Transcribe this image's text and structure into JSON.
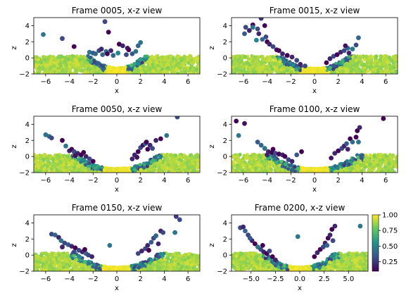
{
  "figure": {
    "colorbar": {
      "range": [
        0.1,
        1.0
      ],
      "ticks": [
        0.25,
        0.5,
        0.75,
        1.0
      ],
      "tick_labels": [
        "0.25",
        "0.50",
        "0.75",
        "1.00"
      ],
      "colormap": "viridis"
    }
  },
  "chart_data": [
    {
      "type": "scatter",
      "title": "Frame 0005, x-z view",
      "xlabel": "x",
      "ylabel": "z",
      "xlim": [
        -7,
        7
      ],
      "ylim": [
        -2,
        5
      ],
      "xticks": [
        -6,
        -4,
        -2,
        0,
        2,
        4,
        6
      ],
      "xtick_labels": [
        "−6",
        "−4",
        "−2",
        "0",
        "2",
        "4",
        "6"
      ],
      "yticks": [
        -2,
        0,
        2,
        4
      ],
      "ytick_labels": [
        "−2",
        "0",
        "2",
        "4"
      ],
      "crater": {
        "radius": 2.3,
        "floor_depth": -1.2
      },
      "points": [
        [
          -6.2,
          2.9,
          0.45
        ],
        [
          -4.6,
          2.4,
          0.3
        ],
        [
          -3.6,
          1.4,
          0.1
        ],
        [
          -2.3,
          0.7,
          0.45
        ],
        [
          -2.0,
          0.6,
          0.35
        ],
        [
          -1.8,
          0.5,
          0.4
        ],
        [
          -1.5,
          0.9,
          0.3
        ],
        [
          -1.2,
          0.4,
          0.4
        ],
        [
          -0.9,
          0.8,
          0.45
        ],
        [
          -0.8,
          0.5,
          0.1
        ],
        [
          -0.7,
          3.2,
          0.1
        ],
        [
          -1.0,
          4.5,
          0.3
        ],
        [
          -0.5,
          0.9,
          0.2
        ],
        [
          -0.3,
          0.3,
          0.4
        ],
        [
          0.2,
          1.7,
          0.1
        ],
        [
          0.5,
          1.5,
          0.2
        ],
        [
          0.8,
          0.4,
          0.3
        ],
        [
          1.0,
          1.0,
          0.1
        ],
        [
          1.3,
          0.5,
          0.35
        ],
        [
          1.6,
          0.8,
          0.45
        ],
        [
          1.8,
          1.5,
          0.4
        ],
        [
          2.0,
          1.9,
          0.45
        ],
        [
          0.9,
          1.2,
          0.15
        ],
        [
          -1.3,
          1.1,
          0.2
        ],
        [
          0.1,
          0.6,
          0.5
        ]
      ]
    },
    {
      "type": "scatter",
      "title": "Frame 0015, x-z view",
      "xlabel": "x",
      "ylabel": "z",
      "xlim": [
        -7,
        7
      ],
      "ylim": [
        -2,
        5
      ],
      "xticks": [
        -6,
        -4,
        -2,
        0,
        2,
        4,
        6
      ],
      "xtick_labels": [
        "−6",
        "−4",
        "−2",
        "0",
        "2",
        "4",
        "6"
      ],
      "yticks": [
        -2,
        0,
        2,
        4
      ],
      "ytick_labels": [
        "−2",
        "0",
        "2",
        "4"
      ],
      "crater": {
        "radius": 2.8,
        "floor_depth": -1.3
      },
      "points": [
        [
          -4.5,
          4.9,
          0.25
        ],
        [
          -5.2,
          4.1,
          0.1
        ],
        [
          -5.8,
          3.8,
          0.3
        ],
        [
          -5.5,
          3.4,
          0.2
        ],
        [
          -5.2,
          3.8,
          0.45
        ],
        [
          -4.8,
          3.6,
          0.3
        ],
        [
          -4.2,
          4.0,
          0.1
        ],
        [
          -4.7,
          3.0,
          0.2
        ],
        [
          -4.4,
          2.3,
          0.4
        ],
        [
          -4.0,
          2.0,
          0.1
        ],
        [
          -3.8,
          1.7,
          0.2
        ],
        [
          -3.5,
          1.4,
          0.3
        ],
        [
          -3.2,
          1.0,
          0.15
        ],
        [
          -3.0,
          0.9,
          0.1
        ],
        [
          -2.7,
          0.5,
          0.2
        ],
        [
          -2.3,
          0.3,
          0.1
        ],
        [
          -1.9,
          0.1,
          0.2
        ],
        [
          -1.5,
          -0.3,
          0.3
        ],
        [
          -1.2,
          -0.8,
          0.2
        ],
        [
          -0.8,
          -1.0,
          0.3
        ],
        [
          -4.9,
          2.2,
          0.5
        ],
        [
          -4.1,
          2.6,
          0.3
        ],
        [
          -5.9,
          3.0,
          0.35
        ],
        [
          1.0,
          -0.6,
          0.1
        ],
        [
          1.3,
          -0.1,
          0.2
        ],
        [
          1.6,
          0.2,
          0.3
        ],
        [
          1.9,
          0.4,
          0.1
        ],
        [
          2.2,
          0.7,
          0.2
        ],
        [
          2.5,
          0.9,
          0.3
        ],
        [
          2.8,
          1.2,
          0.4
        ],
        [
          2.9,
          0.6,
          0.2
        ],
        [
          3.2,
          1.1,
          0.45
        ],
        [
          3.5,
          1.6,
          0.3
        ],
        [
          3.7,
          2.5,
          0.4
        ],
        [
          2.6,
          1.5,
          0.15
        ]
      ]
    },
    {
      "type": "scatter",
      "title": "Frame 0050, x-z view",
      "xlabel": "x",
      "ylabel": "z",
      "xlim": [
        -7,
        7
      ],
      "ylim": [
        -2,
        5
      ],
      "xticks": [
        -6,
        -4,
        -2,
        0,
        2,
        4,
        6
      ],
      "xtick_labels": [
        "−6",
        "−4",
        "−2",
        "0",
        "2",
        "4",
        "6"
      ],
      "yticks": [
        -2,
        0,
        2,
        4
      ],
      "ytick_labels": [
        "−2",
        "0",
        "2",
        "4"
      ],
      "crater": {
        "radius": 3.4,
        "floor_depth": -1.5
      },
      "points": [
        [
          -6.0,
          2.7,
          0.45
        ],
        [
          -5.7,
          2.5,
          0.4
        ],
        [
          -5.5,
          2.3,
          0.3
        ],
        [
          -4.6,
          2.0,
          0.1
        ],
        [
          -4.3,
          1.3,
          0.45
        ],
        [
          -4.0,
          0.7,
          0.2
        ],
        [
          -3.8,
          0.9,
          0.1
        ],
        [
          -3.6,
          0.6,
          0.3
        ],
        [
          -3.3,
          0.4,
          0.2
        ],
        [
          -3.0,
          0.2,
          0.1
        ],
        [
          -2.6,
          0.0,
          0.2
        ],
        [
          -2.3,
          -0.3,
          0.3
        ],
        [
          -2.0,
          -0.6,
          0.1
        ],
        [
          -3.5,
          0.1,
          0.15
        ],
        [
          -2.8,
          0.5,
          0.1
        ],
        [
          1.5,
          0.2,
          0.2
        ],
        [
          1.8,
          0.6,
          0.1
        ],
        [
          2.0,
          1.1,
          0.3
        ],
        [
          2.2,
          1.4,
          0.15
        ],
        [
          2.4,
          1.6,
          0.4
        ],
        [
          2.5,
          1.8,
          0.1
        ],
        [
          2.8,
          1.4,
          0.2
        ],
        [
          3.0,
          1.0,
          0.3
        ],
        [
          2.6,
          0.9,
          0.1
        ],
        [
          3.3,
          2.0,
          0.2
        ],
        [
          3.7,
          2.2,
          0.1
        ],
        [
          4.2,
          2.6,
          0.45
        ],
        [
          5.1,
          4.9,
          0.3
        ],
        [
          1.3,
          -0.3,
          0.2
        ],
        [
          1.7,
          -0.1,
          0.15
        ]
      ]
    },
    {
      "type": "scatter",
      "title": "Frame 0100, x-z view",
      "xlabel": "x",
      "ylabel": "z",
      "xlim": [
        -7,
        7
      ],
      "ylim": [
        -2,
        5
      ],
      "xticks": [
        -6,
        -4,
        -2,
        0,
        2,
        4,
        6
      ],
      "xtick_labels": [
        "−6",
        "−4",
        "−2",
        "0",
        "2",
        "4",
        "6"
      ],
      "yticks": [
        -2,
        0,
        2,
        4
      ],
      "ytick_labels": [
        "−2",
        "0",
        "2",
        "4"
      ],
      "crater": {
        "radius": 3.6,
        "floor_depth": -1.5
      },
      "points": [
        [
          -6.6,
          4.4,
          0.1
        ],
        [
          -5.9,
          4.1,
          0.15
        ],
        [
          -6.4,
          2.6,
          0.45
        ],
        [
          -4.8,
          1.8,
          0.35
        ],
        [
          -4.5,
          1.4,
          0.4
        ],
        [
          -4.2,
          1.0,
          0.45
        ],
        [
          -3.9,
          0.6,
          0.2
        ],
        [
          -3.6,
          0.5,
          0.1
        ],
        [
          -3.3,
          0.4,
          0.3
        ],
        [
          -3.0,
          0.3,
          0.1
        ],
        [
          -2.7,
          0.2,
          0.2
        ],
        [
          -2.5,
          0.0,
          0.1
        ],
        [
          -2.2,
          -0.4,
          0.3
        ],
        [
          -1.9,
          -0.6,
          0.2
        ],
        [
          -1.1,
          0.6,
          0.1
        ],
        [
          -1.5,
          0.2,
          0.35
        ],
        [
          -4.0,
          0.2,
          0.2
        ],
        [
          -3.5,
          0.9,
          0.1
        ],
        [
          1.7,
          0.4,
          0.2
        ],
        [
          2.0,
          0.7,
          0.1
        ],
        [
          2.3,
          1.0,
          0.3
        ],
        [
          2.5,
          1.3,
          0.2
        ],
        [
          2.7,
          1.6,
          0.35
        ],
        [
          3.0,
          2.2,
          0.1
        ],
        [
          2.8,
          0.9,
          0.2
        ],
        [
          3.2,
          1.8,
          0.4
        ],
        [
          3.5,
          2.4,
          0.1
        ],
        [
          3.7,
          1.8,
          0.45
        ],
        [
          3.6,
          3.2,
          0.1
        ],
        [
          3.8,
          3.6,
          0.2
        ],
        [
          5.8,
          4.7,
          0.1
        ],
        [
          1.4,
          -0.2,
          0.15
        ]
      ]
    },
    {
      "type": "scatter",
      "title": "Frame 0150, x-z view",
      "xlabel": "x",
      "ylabel": "z",
      "xlim": [
        -7,
        7
      ],
      "ylim": [
        -2,
        5
      ],
      "xticks": [
        -6,
        -4,
        -2,
        0,
        2,
        4,
        6
      ],
      "xtick_labels": [
        "−6",
        "−4",
        "−2",
        "0",
        "2",
        "4",
        "6"
      ],
      "yticks": [
        -2,
        0,
        2,
        4
      ],
      "ytick_labels": [
        "−2",
        "0",
        "2",
        "4"
      ],
      "crater": {
        "radius": 3.5,
        "floor_depth": -1.5
      },
      "points": [
        [
          -5.5,
          2.6,
          0.3
        ],
        [
          -5.2,
          2.5,
          0.4
        ],
        [
          -4.9,
          2.2,
          0.2
        ],
        [
          -4.7,
          1.8,
          0.45
        ],
        [
          -4.4,
          1.5,
          0.3
        ],
        [
          -4.1,
          1.3,
          0.35
        ],
        [
          -3.8,
          1.1,
          0.2
        ],
        [
          -3.5,
          0.9,
          0.1
        ],
        [
          -3.2,
          0.6,
          0.3
        ],
        [
          -2.9,
          0.4,
          0.2
        ],
        [
          -2.6,
          0.2,
          0.4
        ],
        [
          -2.4,
          0.0,
          0.3
        ],
        [
          -2.1,
          -0.2,
          0.2
        ],
        [
          -3.6,
          0.4,
          0.3
        ],
        [
          -2.7,
          0.7,
          0.1
        ],
        [
          -0.6,
          1.2,
          0.45
        ],
        [
          -4.6,
          1.0,
          0.2
        ],
        [
          1.8,
          0.2,
          0.3
        ],
        [
          2.1,
          0.5,
          0.2
        ],
        [
          2.4,
          0.8,
          0.3
        ],
        [
          2.6,
          1.2,
          0.2
        ],
        [
          2.9,
          1.6,
          0.35
        ],
        [
          3.1,
          2.1,
          0.3
        ],
        [
          3.3,
          2.4,
          0.4
        ],
        [
          2.7,
          0.6,
          0.1
        ],
        [
          3.7,
          3.0,
          0.2
        ],
        [
          3.9,
          2.8,
          0.3
        ],
        [
          4.9,
          2.8,
          0.45
        ],
        [
          5.0,
          4.8,
          0.25
        ],
        [
          5.3,
          4.4,
          0.3
        ],
        [
          3.5,
          1.4,
          0.2
        ]
      ]
    },
    {
      "type": "scatter",
      "title": "Frame 0200, x-z view",
      "xlabel": "x",
      "ylabel": "z",
      "xlim": [
        -7,
        7
      ],
      "ylim": [
        -2,
        5
      ],
      "xticks": [
        -5,
        -2.5,
        0,
        2.5,
        5
      ],
      "xtick_labels": [
        "−5.0",
        "−2.5",
        "0.0",
        "2.5",
        "5.0"
      ],
      "yticks": [
        -2,
        0,
        2,
        4
      ],
      "ytick_labels": [
        "−2",
        "0",
        "2",
        "4"
      ],
      "crater": {
        "radius": 3.5,
        "floor_depth": -1.5
      },
      "points": [
        [
          -6.1,
          3.4,
          0.3
        ],
        [
          -5.8,
          3.5,
          0.2
        ],
        [
          -5.6,
          3.0,
          0.4
        ],
        [
          -5.3,
          2.5,
          0.3
        ],
        [
          -4.9,
          1.8,
          0.2
        ],
        [
          -4.6,
          1.4,
          0.1
        ],
        [
          -4.3,
          1.0,
          0.45
        ],
        [
          -4.0,
          0.7,
          0.3
        ],
        [
          -3.7,
          0.4,
          0.2
        ],
        [
          -3.4,
          0.2,
          0.1
        ],
        [
          -3.1,
          0.5,
          0.3
        ],
        [
          -2.8,
          -0.2,
          0.1
        ],
        [
          -2.5,
          -0.6,
          0.2
        ],
        [
          -3.8,
          1.2,
          0.1
        ],
        [
          -5.1,
          2.1,
          0.35
        ],
        [
          -0.2,
          2.3,
          0.45
        ],
        [
          1.8,
          0.3,
          0.2
        ],
        [
          2.1,
          0.7,
          0.1
        ],
        [
          2.4,
          1.0,
          0.3
        ],
        [
          2.6,
          1.5,
          0.2
        ],
        [
          2.9,
          2.1,
          0.1
        ],
        [
          3.1,
          2.5,
          0.2
        ],
        [
          3.3,
          3.2,
          0.1
        ],
        [
          3.6,
          3.6,
          0.2
        ],
        [
          2.8,
          1.2,
          0.4
        ],
        [
          3.4,
          1.8,
          0.3
        ],
        [
          6.2,
          3.6,
          0.45
        ],
        [
          1.5,
          -0.2,
          0.1
        ]
      ]
    }
  ]
}
